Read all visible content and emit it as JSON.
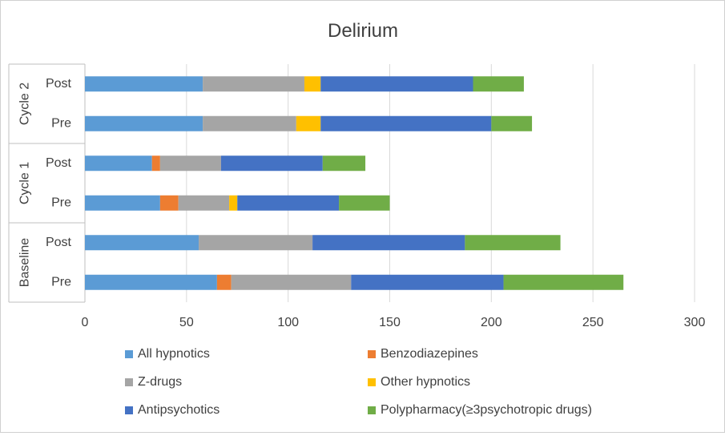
{
  "chart_data": {
    "type": "bar",
    "orientation": "horizontal",
    "stacked": true,
    "title": "Delirium",
    "xlim": [
      0,
      300
    ],
    "xticks": [
      0,
      50,
      100,
      150,
      200,
      250,
      300
    ],
    "grid": true,
    "legend_position": "bottom",
    "groups": [
      {
        "label": "Cycle 2",
        "rows": [
          "Post",
          "Pre"
        ]
      },
      {
        "label": "Cycle 1",
        "rows": [
          "Post",
          "Pre"
        ]
      },
      {
        "label": "Baseline",
        "rows": [
          "Post",
          "Pre"
        ]
      }
    ],
    "categories": [
      "Cycle 2 Post",
      "Cycle 2 Pre",
      "Cycle 1 Post",
      "Cycle 1 Pre",
      "Baseline Post",
      "Baseline Pre"
    ],
    "series": [
      {
        "name": "All hypnotics",
        "color": "#5B9BD5",
        "values": [
          58,
          58,
          33,
          37,
          56,
          65
        ]
      },
      {
        "name": "Benzodiazepines",
        "color": "#ED7D31",
        "values": [
          0,
          0,
          4,
          9,
          0,
          7
        ]
      },
      {
        "name": "Z-drugs",
        "color": "#A5A5A5",
        "values": [
          50,
          46,
          30,
          25,
          56,
          59
        ]
      },
      {
        "name": "Other hypnotics",
        "color": "#FFC000",
        "values": [
          8,
          12,
          0,
          4,
          0,
          0
        ]
      },
      {
        "name": "Antipsychotics",
        "color": "#4472C4",
        "values": [
          75,
          84,
          50,
          50,
          75,
          75
        ]
      },
      {
        "name": "Polypharmacy(≥3psychotropic drugs)",
        "color": "#70AD47",
        "values": [
          25,
          20,
          21,
          25,
          47,
          59
        ]
      }
    ]
  }
}
